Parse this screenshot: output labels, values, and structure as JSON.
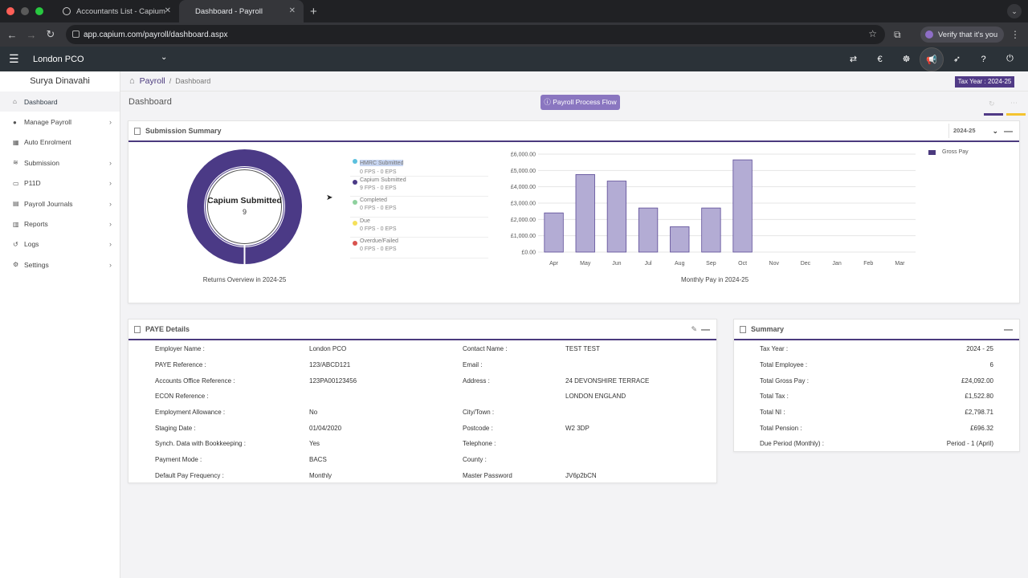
{
  "browser": {
    "tabs": [
      {
        "label": "Accountants List - Capium",
        "active": false
      },
      {
        "label": "Dashboard - Payroll",
        "active": true
      }
    ],
    "url": "app.capium.com/payroll/dashboard.aspx",
    "verify_label": "Verify that it's you"
  },
  "header": {
    "company": "London PCO",
    "icons": [
      "swap-icon",
      "euro-icon",
      "users-icon",
      "megaphone-icon",
      "rocket-icon",
      "help-icon",
      "power-icon"
    ]
  },
  "sidebar": {
    "user": "Surya Dinavahi",
    "items": [
      {
        "label": "Dashboard",
        "icon": "home-icon",
        "chevron": false,
        "active": true
      },
      {
        "label": "Manage Payroll",
        "icon": "user-icon",
        "chevron": true,
        "active": false
      },
      {
        "label": "Auto Enrolment",
        "icon": "grid-icon",
        "chevron": false,
        "active": false
      },
      {
        "label": "Submission",
        "icon": "database-icon",
        "chevron": true,
        "active": false
      },
      {
        "label": "P11D",
        "icon": "file-icon",
        "chevron": true,
        "active": false
      },
      {
        "label": "Payroll Journals",
        "icon": "book-icon",
        "chevron": true,
        "active": false
      },
      {
        "label": "Reports",
        "icon": "chart-icon",
        "chevron": true,
        "active": false
      },
      {
        "label": "Logs",
        "icon": "history-icon",
        "chevron": true,
        "active": false
      },
      {
        "label": "Settings",
        "icon": "gear-icon",
        "chevron": true,
        "active": false
      }
    ]
  },
  "breadcrumb": {
    "section": "Payroll",
    "page": "Dashboard"
  },
  "tax_year_badge": "Tax Year : 2024-25",
  "page_title": "Dashboard",
  "process_flow_button": "Payroll Process Flow",
  "submission_summary": {
    "title": "Submission Summary",
    "year": "2024-25",
    "donut": {
      "title": "Capium Submitted",
      "value": "9",
      "caption": "Returns Overview in 2024-25"
    },
    "legend": [
      {
        "name": "HMRC Submitted",
        "count": "0 FPS - 0 EPS",
        "color": "#5bc0de"
      },
      {
        "name": "Capium Submitted",
        "count": "9 FPS - 0 EPS",
        "color": "#4b3a86"
      },
      {
        "name": "Completed",
        "count": "0 FPS - 0 EPS",
        "color": "#8fd19e"
      },
      {
        "name": "Due",
        "count": "0 FPS - 0 EPS",
        "color": "#f5e05a"
      },
      {
        "name": "Overdue/Failed",
        "count": "0 FPS - 0 EPS",
        "color": "#d9534f"
      }
    ],
    "chart_caption": "Monthly Pay in 2024-25"
  },
  "chart_data": {
    "type": "bar",
    "categories": [
      "Apr",
      "May",
      "Jun",
      "Jul",
      "Aug",
      "Sep",
      "Oct",
      "Nov",
      "Dec",
      "Jan",
      "Feb",
      "Mar"
    ],
    "series": [
      {
        "name": "Gross Pay",
        "values": [
          2400,
          4750,
          4350,
          2700,
          1550,
          2700,
          5650,
          0,
          0,
          0,
          0,
          0
        ]
      }
    ],
    "yticks": [
      "£0.00",
      "£1,000.00",
      "£2,000.00",
      "£3,000.00",
      "£4,000.00",
      "£5,000.00",
      "£6,000.00"
    ],
    "ylim": [
      0,
      6000
    ],
    "grid": true,
    "legend": "top-right",
    "color": "#b3acd4",
    "stroke": "#5b4a96"
  },
  "paye": {
    "title": "PAYE Details",
    "left": [
      {
        "label": "Employer Name :",
        "value": "London PCO"
      },
      {
        "label": "PAYE Reference :",
        "value": "123/ABCD121"
      },
      {
        "label": "Accounts Office Reference :",
        "value": "123PA00123456"
      },
      {
        "label": "ECON Reference :",
        "value": ""
      },
      {
        "label": "Employment Allowance :",
        "value": "No"
      },
      {
        "label": "Staging Date :",
        "value": "01/04/2020"
      },
      {
        "label": "Synch. Data with Bookkeeping :",
        "value": "Yes"
      },
      {
        "label": "Payment Mode :",
        "value": "BACS"
      },
      {
        "label": "Default Pay Frequency :",
        "value": "Monthly"
      }
    ],
    "right": [
      {
        "label": "Contact Name :",
        "value": "TEST TEST"
      },
      {
        "label": "Email :",
        "value": ""
      },
      {
        "label": "Address :",
        "value": "24 DEVONSHIRE TERRACE"
      },
      {
        "label": "",
        "value": "LONDON ENGLAND"
      },
      {
        "label": "City/Town :",
        "value": ""
      },
      {
        "label": "Postcode :",
        "value": "W2 3DP"
      },
      {
        "label": "Telephone :",
        "value": ""
      },
      {
        "label": "County :",
        "value": ""
      },
      {
        "label": "Master Password",
        "value": "JV6p2bCN"
      }
    ]
  },
  "summary": {
    "title": "Summary",
    "rows": [
      {
        "label": "Tax Year :",
        "value": "2024 - 25"
      },
      {
        "label": "Total Employee :",
        "value": "6"
      },
      {
        "label": "Total Gross Pay :",
        "value": "£24,092.00"
      },
      {
        "label": "Total Tax :",
        "value": "£1,522.80"
      },
      {
        "label": "Total NI :",
        "value": "£2,798.71"
      },
      {
        "label": "Total Pension :",
        "value": "£696.32"
      },
      {
        "label": "Due Period (Monthly) :",
        "value": "Period - 1 (April)"
      }
    ]
  }
}
